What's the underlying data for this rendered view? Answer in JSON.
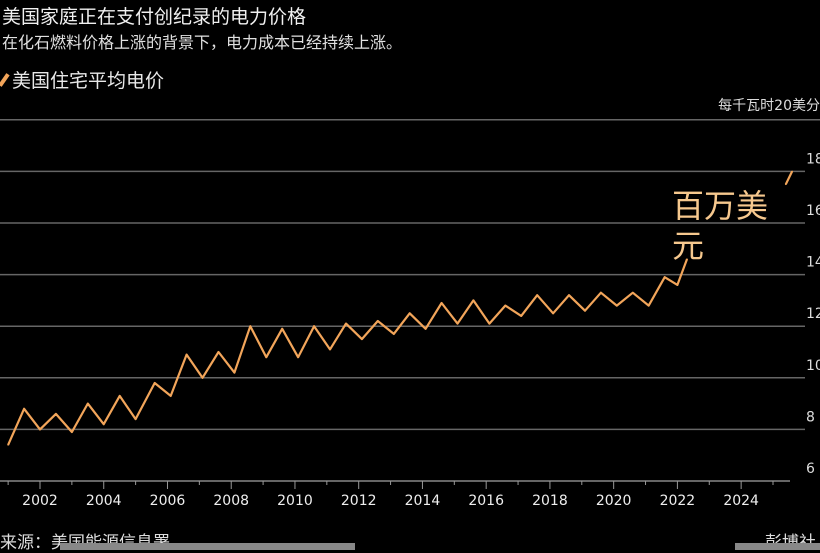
{
  "chart_data": {
    "type": "line",
    "title": "美国家庭正在支付创纪录的电力价格",
    "subtitle": "在化石燃料价格上涨的背景下，电力成本已经持续上涨。",
    "legend": [
      "美国住宅平均电价"
    ],
    "ylabel": "每千瓦时20美分",
    "ylim": [
      6,
      20
    ],
    "yticks": [
      6,
      8,
      10,
      12,
      14,
      16,
      18
    ],
    "xlim": [
      2001,
      2025.8
    ],
    "xticks": [
      "2002",
      "2004",
      "2006",
      "2008",
      "2010",
      "2012",
      "2014",
      "2016",
      "2018",
      "2020",
      "2022",
      "2024"
    ],
    "annotation": "百万美元",
    "grid": true,
    "series": [
      {
        "name": "美国住宅平均电价",
        "color": "#f2a55a",
        "x": [
          2001.0,
          2001.5,
          2002.0,
          2002.5,
          2003.0,
          2003.5,
          2004.0,
          2004.5,
          2005.0,
          2005.6,
          2006.1,
          2006.6,
          2007.1,
          2007.6,
          2008.1,
          2008.6,
          2009.1,
          2009.6,
          2010.1,
          2010.6,
          2011.1,
          2011.6,
          2012.1,
          2012.6,
          2013.1,
          2013.6,
          2014.1,
          2014.6,
          2015.1,
          2015.6,
          2016.1,
          2016.6,
          2017.1,
          2017.6,
          2018.1,
          2018.6,
          2019.1,
          2019.6,
          2020.1,
          2020.6,
          2021.1,
          2021.6,
          2022.0,
          2022.3,
          null,
          2025.4,
          2025.6
        ],
        "y": [
          7.4,
          8.8,
          8.0,
          8.6,
          7.9,
          9.0,
          8.2,
          9.3,
          8.4,
          9.8,
          9.3,
          10.9,
          10.0,
          11.0,
          10.2,
          12.0,
          10.8,
          11.9,
          10.8,
          12.0,
          11.1,
          12.1,
          11.5,
          12.2,
          11.7,
          12.5,
          11.9,
          12.9,
          12.1,
          13.0,
          12.1,
          12.8,
          12.4,
          13.2,
          12.5,
          13.2,
          12.6,
          13.3,
          12.8,
          13.3,
          12.8,
          13.9,
          13.6,
          14.6,
          null,
          17.5,
          18.0
        ]
      }
    ]
  },
  "source": "来源：美国能源信息署",
  "brand": "彭博社"
}
